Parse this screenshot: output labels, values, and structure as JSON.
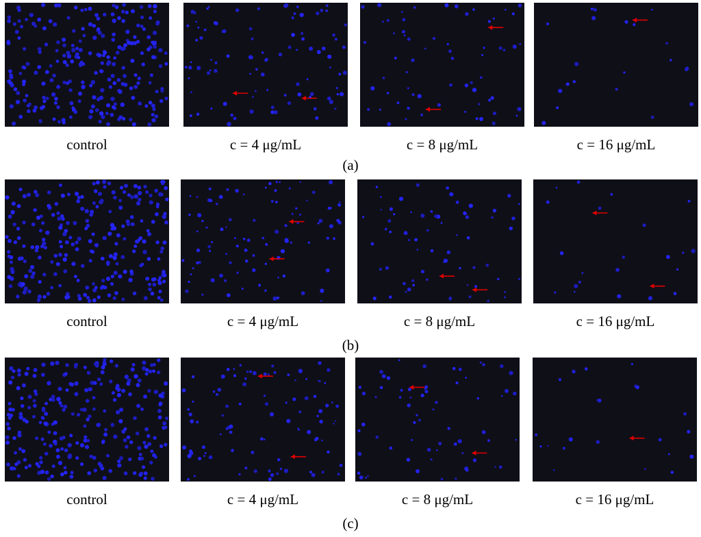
{
  "rows": [
    {
      "label": "(a)",
      "panels": [
        {
          "caption": "control"
        },
        {
          "caption": "c = 4 μg/mL"
        },
        {
          "caption": "c = 8 μg/mL"
        },
        {
          "caption": "c = 16 μg/mL"
        }
      ]
    },
    {
      "label": "(b)",
      "panels": [
        {
          "caption": "control"
        },
        {
          "caption": "c = 4 μg/mL"
        },
        {
          "caption": "c = 8 μg/mL"
        },
        {
          "caption": "c = 16 μg/mL"
        }
      ]
    },
    {
      "label": "(c)",
      "panels": [
        {
          "caption": "control"
        },
        {
          "caption": "c = 4 μg/mL"
        },
        {
          "caption": "c = 8 μg/mL"
        },
        {
          "caption": "c = 16 μg/mL"
        }
      ]
    }
  ]
}
